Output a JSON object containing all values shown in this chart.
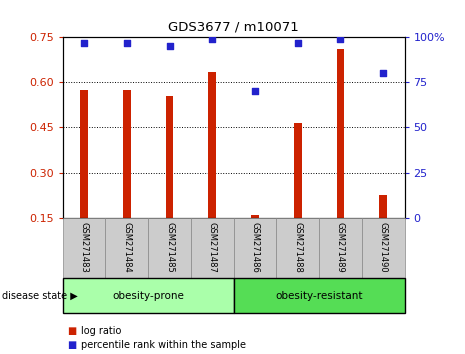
{
  "title": "GDS3677 / m10071",
  "samples": [
    "GSM271483",
    "GSM271484",
    "GSM271485",
    "GSM271487",
    "GSM271486",
    "GSM271488",
    "GSM271489",
    "GSM271490"
  ],
  "log_ratio": [
    0.576,
    0.576,
    0.555,
    0.635,
    0.158,
    0.465,
    0.71,
    0.225
  ],
  "percentile": [
    97,
    97,
    95,
    99,
    70,
    97,
    99,
    80
  ],
  "bar_color": "#cc2200",
  "dot_color": "#2222cc",
  "left_ylim": [
    0.15,
    0.75
  ],
  "left_yticks": [
    0.15,
    0.3,
    0.45,
    0.6,
    0.75
  ],
  "right_ylim": [
    0,
    100
  ],
  "right_yticks": [
    0,
    25,
    50,
    75,
    100
  ],
  "right_yticklabels": [
    "0",
    "25",
    "50",
    "75",
    "100%"
  ],
  "groups": [
    {
      "label": "obesity-prone",
      "indices": [
        0,
        1,
        2,
        3
      ],
      "color": "#aaffaa"
    },
    {
      "label": "obesity-resistant",
      "indices": [
        4,
        5,
        6,
        7
      ],
      "color": "#55dd55"
    }
  ],
  "group_label": "disease state",
  "legend_items": [
    {
      "label": "log ratio",
      "color": "#cc2200"
    },
    {
      "label": "percentile rank within the sample",
      "color": "#2222cc"
    }
  ],
  "grid_color": "black",
  "background_color": "#ffffff",
  "bar_bottom": 0.15,
  "tick_label_color_left": "#cc2200",
  "tick_label_color_right": "#2222cc",
  "sample_box_color": "#cccccc",
  "bar_width": 0.18
}
